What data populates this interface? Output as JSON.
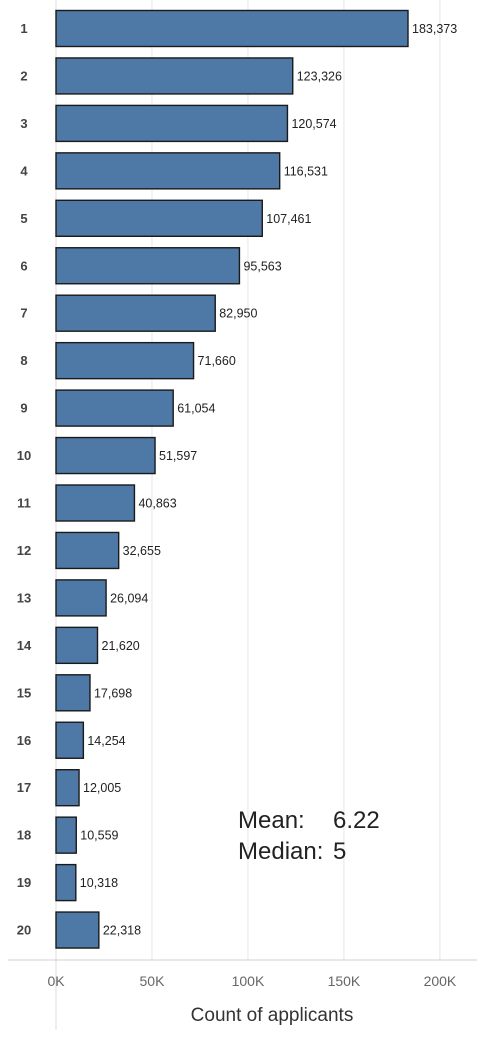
{
  "chart_data": {
    "type": "bar",
    "orientation": "horizontal",
    "categories": [
      "1",
      "2",
      "3",
      "4",
      "5",
      "6",
      "7",
      "8",
      "9",
      "10",
      "11",
      "12",
      "13",
      "14",
      "15",
      "16",
      "17",
      "18",
      "19",
      "20"
    ],
    "values": [
      183373,
      123326,
      120574,
      116531,
      107461,
      95563,
      82950,
      71660,
      61054,
      51597,
      40863,
      32655,
      26094,
      21620,
      17698,
      14254,
      12005,
      10559,
      10318,
      22318
    ],
    "value_labels": [
      "183,373",
      "123,326",
      "120,574",
      "116,531",
      "107,461",
      "95,563",
      "82,950",
      "71,660",
      "61,054",
      "51,597",
      "40,863",
      "32,655",
      "26,094",
      "21,620",
      "17,698",
      "14,254",
      "12,005",
      "10,559",
      "10,318",
      "22,318"
    ],
    "title": "",
    "xlabel": "Count of applicants",
    "ylabel": "",
    "xlim": [
      0,
      220000
    ],
    "x_ticks": [
      0,
      50000,
      100000,
      150000,
      200000
    ],
    "x_tick_labels": [
      "0K",
      "50K",
      "100K",
      "150K",
      "200K"
    ],
    "grid": true,
    "bar_color": "#4e79a7",
    "bar_edge_color": "#1a1a1a",
    "annotations": {
      "mean_label": "Mean:",
      "mean_value": "6.22",
      "median_label": "Median:",
      "median_value": "5"
    }
  }
}
